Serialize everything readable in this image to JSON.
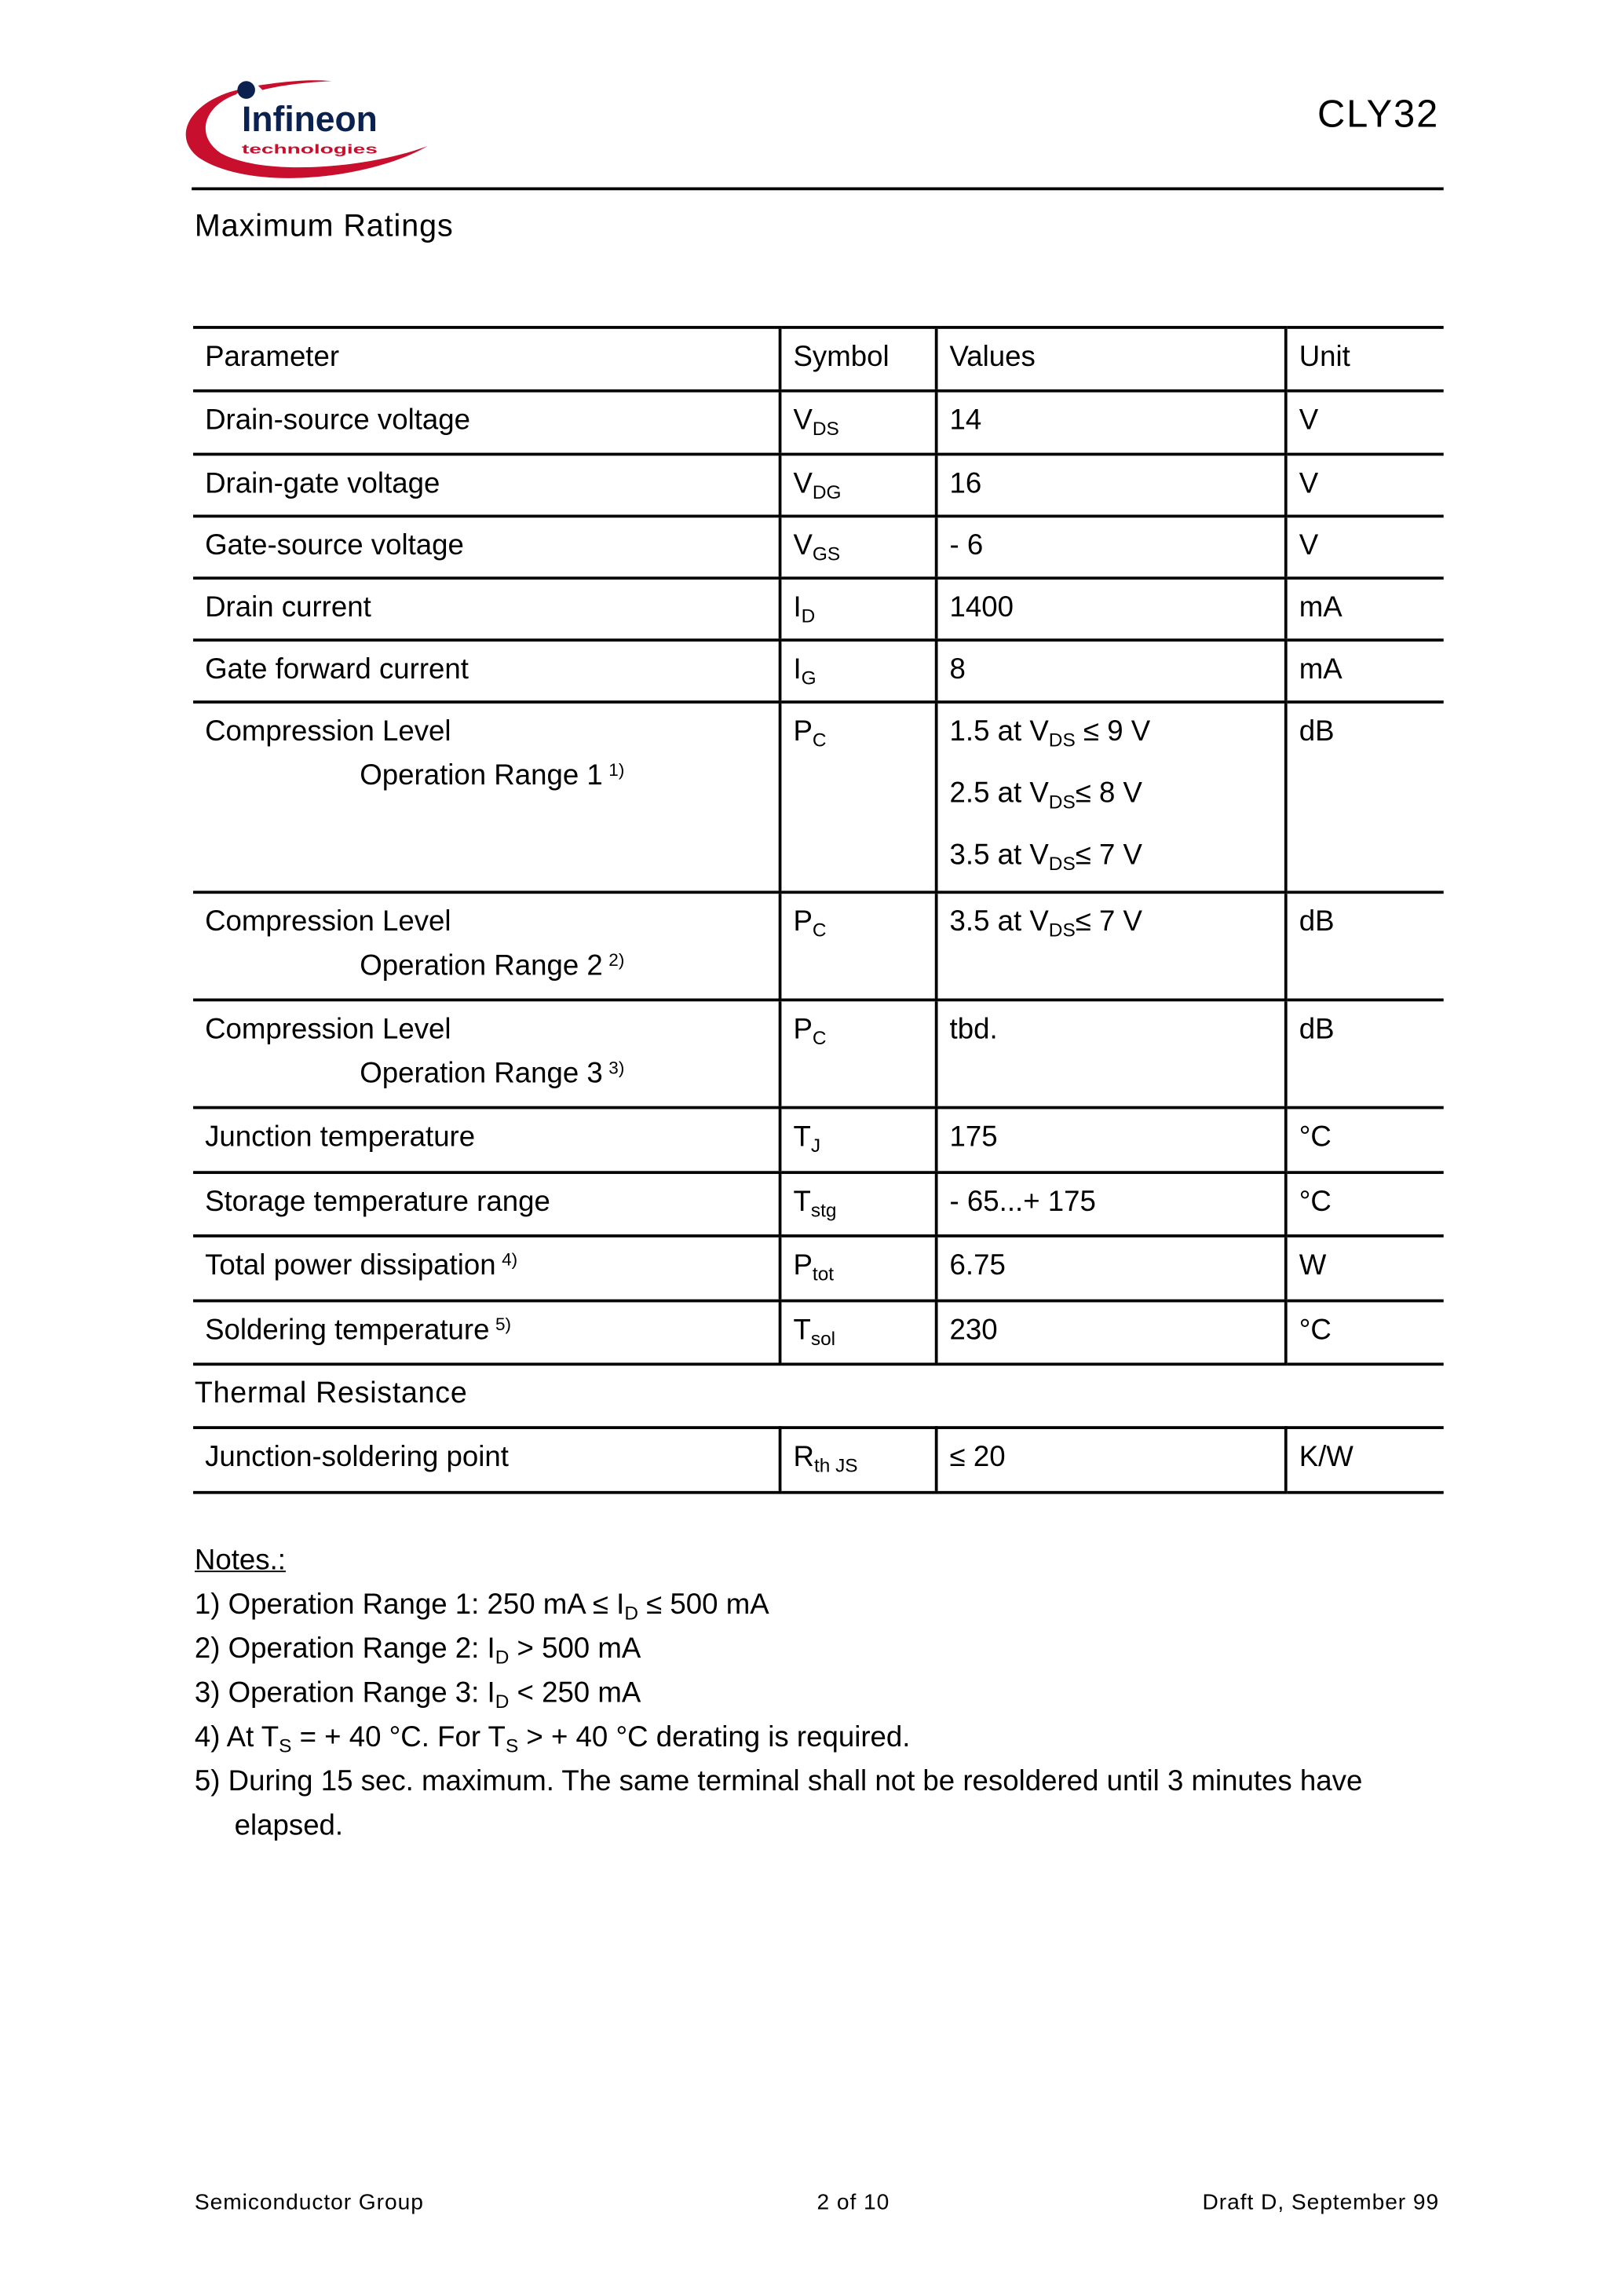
{
  "header": {
    "logo_text": "Infineon",
    "logo_subtext": "technologies",
    "part": "CLY32",
    "section": "Maximum Ratings"
  },
  "colors": {
    "logo_red": "#c8102e",
    "logo_blue": "#0b2150"
  },
  "table": {
    "headers": [
      "Parameter",
      "Symbol",
      "Values",
      "Unit"
    ],
    "rows": [
      {
        "param": "Drain-source voltage",
        "sym": "V",
        "sub": "DS",
        "value": "14",
        "unit": "V"
      },
      {
        "param": "Drain-gate voltage",
        "sym": "V",
        "sub": "DG",
        "value": "16",
        "unit": "V"
      },
      {
        "param": "Gate-source voltage",
        "sym": "V",
        "sub": "GS",
        "value": "- 6",
        "unit": "V"
      },
      {
        "param": "Drain current",
        "sym": "I",
        "sub": "D",
        "value": "1400",
        "unit": "mA"
      },
      {
        "param": "Gate forward current",
        "sym": "I",
        "sub": "G",
        "value": "8",
        "unit": "mA"
      }
    ],
    "comp": [
      {
        "param": "Compression Level",
        "range": "Operation Range 1",
        "note": "1)",
        "sym": "P",
        "sub": "C",
        "values": [
          {
            "a": "1.5 at V",
            "s": "DS",
            "b": " ≤ 9 V"
          },
          {
            "a": "2.5 at V",
            "s": "DS",
            "b": "≤ 8 V"
          },
          {
            "a": "3.5 at V",
            "s": "DS",
            "b": "≤ 7 V"
          }
        ],
        "unit": "dB"
      },
      {
        "param": "Compression Level",
        "range": "Operation Range 2",
        "note": "2)",
        "sym": "P",
        "sub": "C",
        "values": [
          {
            "a": "3.5 at V",
            "s": "DS",
            "b": "≤ 7 V"
          }
        ],
        "unit": "dB"
      },
      {
        "param": "Compression Level",
        "range": "Operation Range 3",
        "note": "3)",
        "sym": "P",
        "sub": "C",
        "value": "tbd.",
        "unit": "dB"
      }
    ],
    "rows2": [
      {
        "param": "Junction temperature",
        "note": "",
        "sym": "T",
        "sub": "J",
        "value": "175",
        "unit": "°C"
      },
      {
        "param": "Storage temperature range",
        "note": "",
        "sym": "T",
        "sub": "stg",
        "value": "- 65...+ 175",
        "unit": "°C"
      },
      {
        "param": "Total power dissipation",
        "note": "4)",
        "sym": "P",
        "sub": "tot",
        "value": "6.75",
        "unit": "W"
      },
      {
        "param": "Soldering temperature",
        "note": "5)",
        "sym": "T",
        "sub": "sol",
        "value": "230",
        "unit": "°C"
      }
    ],
    "thermal_header": "Thermal Resistance",
    "thermal": {
      "param": "Junction-soldering point",
      "sym": "R",
      "sub": "th JS",
      "value": "≤ 20",
      "unit": "K/W"
    }
  },
  "notes": {
    "title": "Notes.:",
    "n1": {
      "a": "1) Operation Range 1: 250 mA ≤ I",
      "s": "D",
      "b": " ≤ 500 mA"
    },
    "n2": {
      "a": "2) Operation Range 2: I",
      "s": "D",
      "b": " > 500 mA"
    },
    "n3": {
      "a": "3) Operation Range 3: I",
      "s": "D",
      "b": " < 250 mA"
    },
    "n4": {
      "a": "4) At T",
      "s": "S",
      "b": " = + 40 °C. For T",
      "s2": "S",
      "c": " > + 40 °C derating is required."
    },
    "n5": "5) During 15 sec. maximum. The same terminal shall not be resoldered until 3 minutes have",
    "n5b": "elapsed."
  },
  "footer": {
    "left": "Semiconductor Group",
    "center": "2 of 10",
    "right": "Draft D, September 99"
  }
}
